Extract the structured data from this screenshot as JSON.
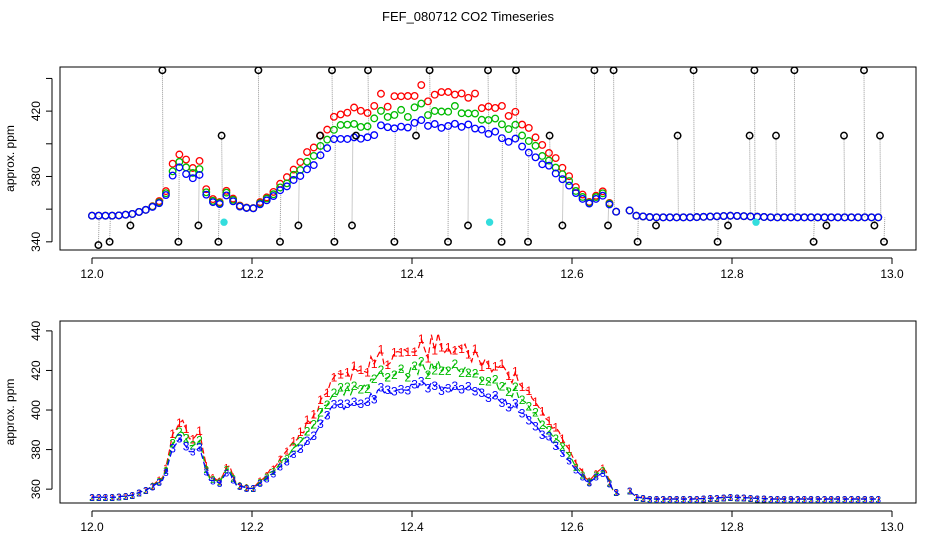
{
  "title": "FEF_080712  CO2 Timeseries",
  "colors": {
    "series1": "#ff0000",
    "series2": "#00bb00",
    "series3": "#0000ff",
    "extreme": "#000000",
    "flag": "#33dddd",
    "frame": "#000000",
    "connector": "#999999"
  },
  "chart_data": [
    {
      "type": "scatter",
      "name": "top-panel",
      "ylabel": "approx. ppm",
      "xlim": [
        11.96,
        13.03
      ],
      "ylim": [
        335,
        447
      ],
      "xticks": [
        12.0,
        12.2,
        12.4,
        12.6,
        12.8,
        13.0
      ],
      "xtick_labels": [
        "12.0",
        "12.2",
        "12.4",
        "12.6",
        "12.8",
        "13.0"
      ],
      "yticks": [
        340,
        360,
        380,
        400,
        420,
        440
      ],
      "ytick_labels": [
        "340",
        "",
        "380",
        "",
        "420",
        ""
      ],
      "gap": [
        12.662,
        12.668
      ],
      "outlier_times": [
        12.008,
        12.022,
        12.048,
        12.088,
        12.108,
        12.133,
        12.158,
        12.162,
        12.208,
        12.235,
        12.258,
        12.285,
        12.3,
        12.303,
        12.325,
        12.33,
        12.345,
        12.378,
        12.405,
        12.422,
        12.445,
        12.47,
        12.495,
        12.512,
        12.53,
        12.545,
        12.572,
        12.588,
        12.628,
        12.645,
        12.652,
        12.682,
        12.705,
        12.732,
        12.752,
        12.782,
        12.795,
        12.822,
        12.828,
        12.855,
        12.878,
        12.902,
        12.918,
        12.94,
        12.965,
        12.978,
        12.985,
        12.99
      ],
      "outlier_values": [
        338,
        340,
        350,
        445,
        340,
        350,
        340,
        405,
        445,
        340,
        350,
        405,
        445,
        340,
        350,
        405,
        445,
        340,
        405,
        445,
        340,
        350,
        445,
        340,
        445,
        340,
        405,
        350,
        445,
        350,
        445,
        340,
        350,
        405,
        445,
        340,
        350,
        405,
        445,
        405,
        445,
        340,
        350,
        405,
        445,
        350,
        405,
        340
      ],
      "flag_times": [
        12.165,
        12.497,
        12.83
      ],
      "flag_values": [
        352,
        352,
        352
      ],
      "series": [
        {
          "name": "1"
        },
        {
          "name": "2"
        },
        {
          "name": "3"
        }
      ]
    },
    {
      "type": "line",
      "name": "bottom-panel",
      "ylabel": "approx. ppm",
      "xlim": [
        11.96,
        13.03
      ],
      "ylim": [
        353,
        445
      ],
      "xticks": [
        12.0,
        12.2,
        12.4,
        12.6,
        12.8,
        13.0
      ],
      "xtick_labels": [
        "12.0",
        "12.2",
        "12.4",
        "12.6",
        "12.8",
        "13.0"
      ],
      "yticks": [
        360,
        380,
        400,
        420,
        440
      ],
      "ytick_labels": [
        "360",
        "380",
        "400",
        "420",
        "440"
      ],
      "gap": [
        12.662,
        12.668
      ],
      "series": [
        {
          "name": "1",
          "label": "1"
        },
        {
          "name": "2",
          "label": "2"
        },
        {
          "name": "3",
          "label": "3"
        }
      ]
    }
  ],
  "base_curve": {
    "x": [
      12.0,
      12.03,
      12.05,
      12.07,
      12.09,
      12.1,
      12.11,
      12.125,
      12.135,
      12.145,
      12.16,
      12.17,
      12.18,
      12.2,
      12.22,
      12.24,
      12.26,
      12.28,
      12.3,
      12.32,
      12.34,
      12.36,
      12.38,
      12.4,
      12.42,
      12.44,
      12.46,
      12.48,
      12.5,
      12.52,
      12.54,
      12.56,
      12.58,
      12.6,
      12.62,
      12.64,
      12.65,
      12.66,
      12.67,
      12.68,
      12.7,
      12.75,
      12.8,
      12.85,
      12.9,
      12.95,
      12.99
    ],
    "y": [
      356,
      356,
      357,
      360,
      365,
      380,
      385,
      378,
      382,
      365,
      363,
      370,
      362,
      360,
      366,
      373,
      380,
      388,
      401,
      403,
      405,
      409,
      410,
      413,
      413,
      412,
      411,
      409,
      406,
      403,
      399,
      390,
      382,
      372,
      363,
      369,
      360,
      357,
      360,
      356,
      355,
      355,
      356,
      355,
      355,
      355,
      355
    ]
  },
  "offsets": {
    "s1": 14,
    "s2": 7,
    "s3": 0
  }
}
